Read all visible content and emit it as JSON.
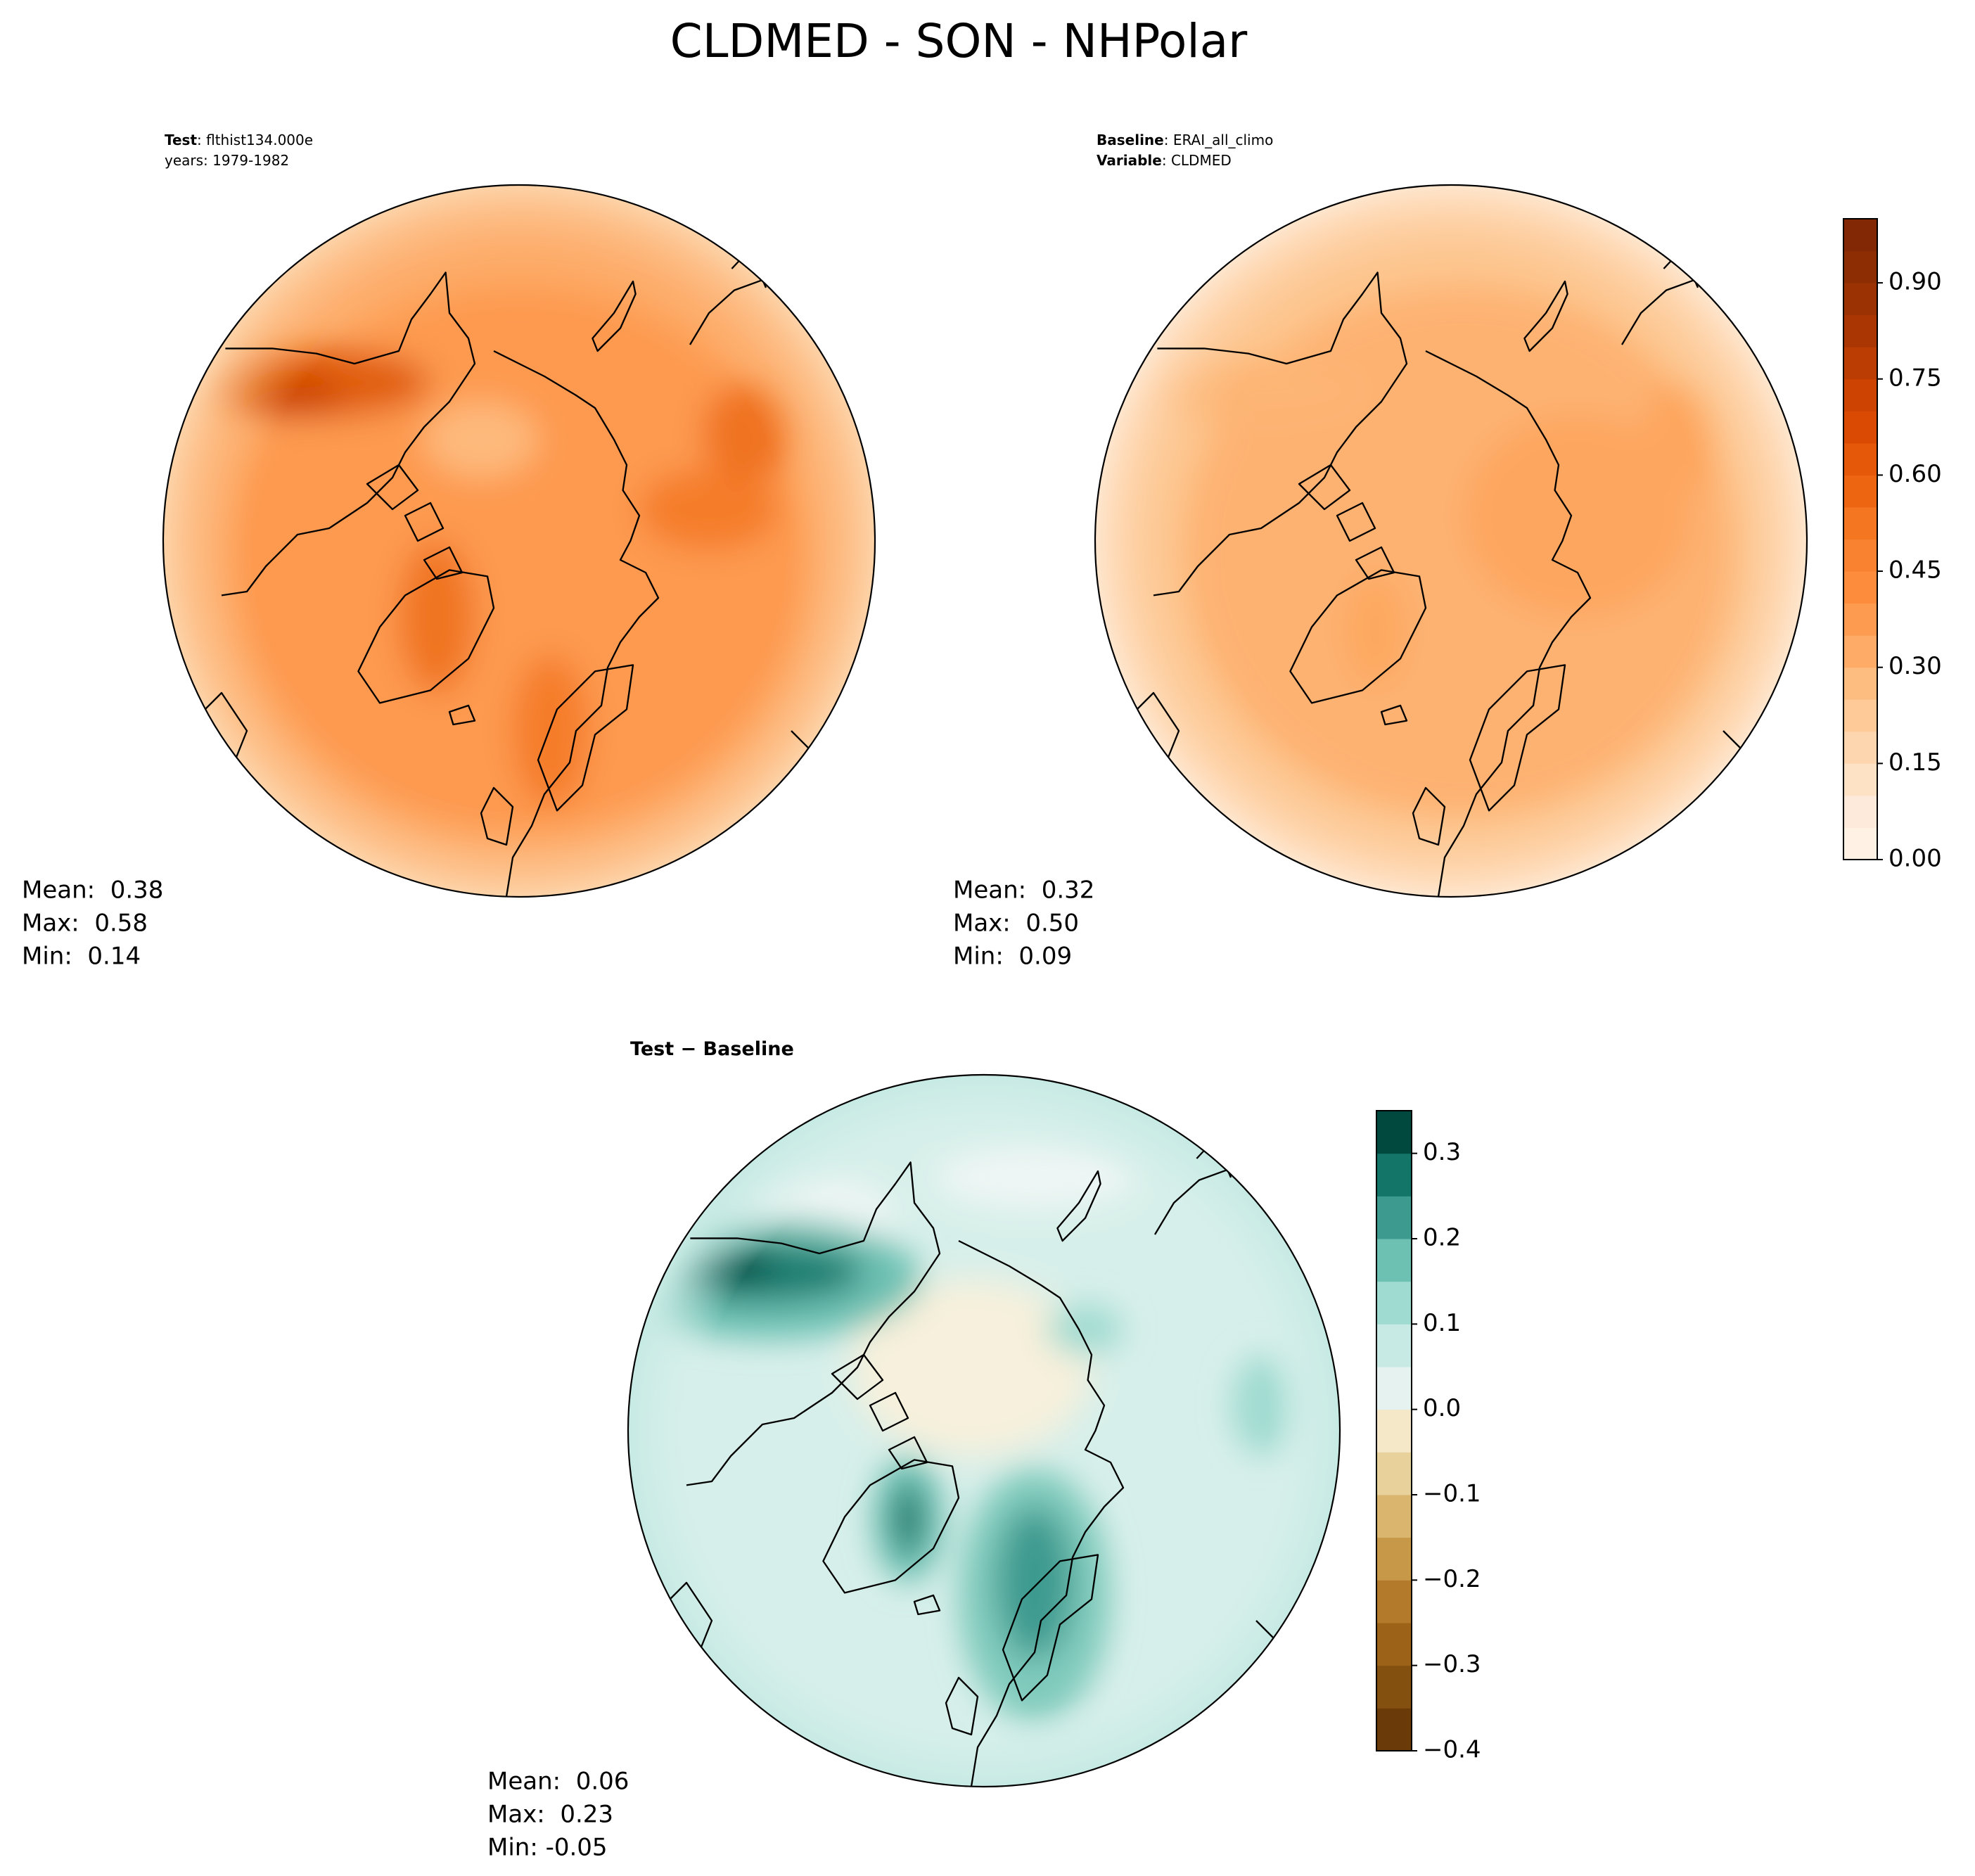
{
  "title": "CLDMED - SON - NHPolar",
  "panels": [
    {
      "header": [
        {
          "bold": "Test",
          "text": ": flthist134.000e"
        },
        {
          "text": "years: 1979-1982"
        }
      ],
      "stats": [
        "Mean:  0.38",
        "Max:  0.58",
        "Min:  0.14"
      ]
    },
    {
      "header": [
        {
          "bold": "Baseline",
          "text": ": ERAI_all_climo"
        },
        {
          "bold": "Variable",
          "text": ": CLDMED"
        }
      ],
      "stats": [
        "Mean:  0.32",
        "Max:  0.50",
        "Min:  0.09"
      ]
    },
    {
      "header": [
        {
          "bold": "Test − Baseline"
        }
      ],
      "stats": [
        "Mean:  0.06",
        "Max:  0.23",
        "Min: -0.05"
      ]
    }
  ],
  "colorbars": [
    {
      "lim": [
        0,
        1
      ],
      "ticks": [
        {
          "value": 0,
          "label": "0.00"
        },
        {
          "value": 0.15,
          "label": "0.15"
        },
        {
          "value": 0.3,
          "label": "0.30"
        },
        {
          "value": 0.45,
          "label": "0.45"
        },
        {
          "value": 0.6,
          "label": "0.60"
        },
        {
          "value": 0.75,
          "label": "0.75"
        },
        {
          "value": 0.9,
          "label": "0.90"
        }
      ],
      "colors": [
        "#fff2e5",
        "#feeada",
        "#fee2c6",
        "#fdd6b0",
        "#fdca98",
        "#fdbc80",
        "#fdab67",
        "#fd9c51",
        "#fd8d3c",
        "#f98230",
        "#f57621",
        "#ee6511",
        "#e55709",
        "#db4a02",
        "#cd4302",
        "#bb3d03",
        "#aa3703",
        "#9b3203",
        "#8d2d04",
        "#822804"
      ]
    },
    {
      "lim": [
        -0.4,
        0.35
      ],
      "ticks": [
        {
          "value": -0.4,
          "label": "−0.4"
        },
        {
          "value": -0.3,
          "label": "−0.3"
        },
        {
          "value": -0.2,
          "label": "−0.2"
        },
        {
          "value": -0.1,
          "label": "−0.1"
        },
        {
          "value": 0,
          "label": "0.0"
        },
        0.1,
        0.2,
        0.3
      ],
      "colors": [
        "#6a3a09",
        "#83500f",
        "#9c6318",
        "#b47a2b",
        "#c79848",
        "#d9b56d",
        "#e8d19a",
        "#f4e8c8",
        "#e5f2ef",
        "#c7eae4",
        "#a0dbd1",
        "#6dc1b3",
        "#3d9a8f",
        "#127567",
        "#01483f"
      ]
    }
  ]
}
